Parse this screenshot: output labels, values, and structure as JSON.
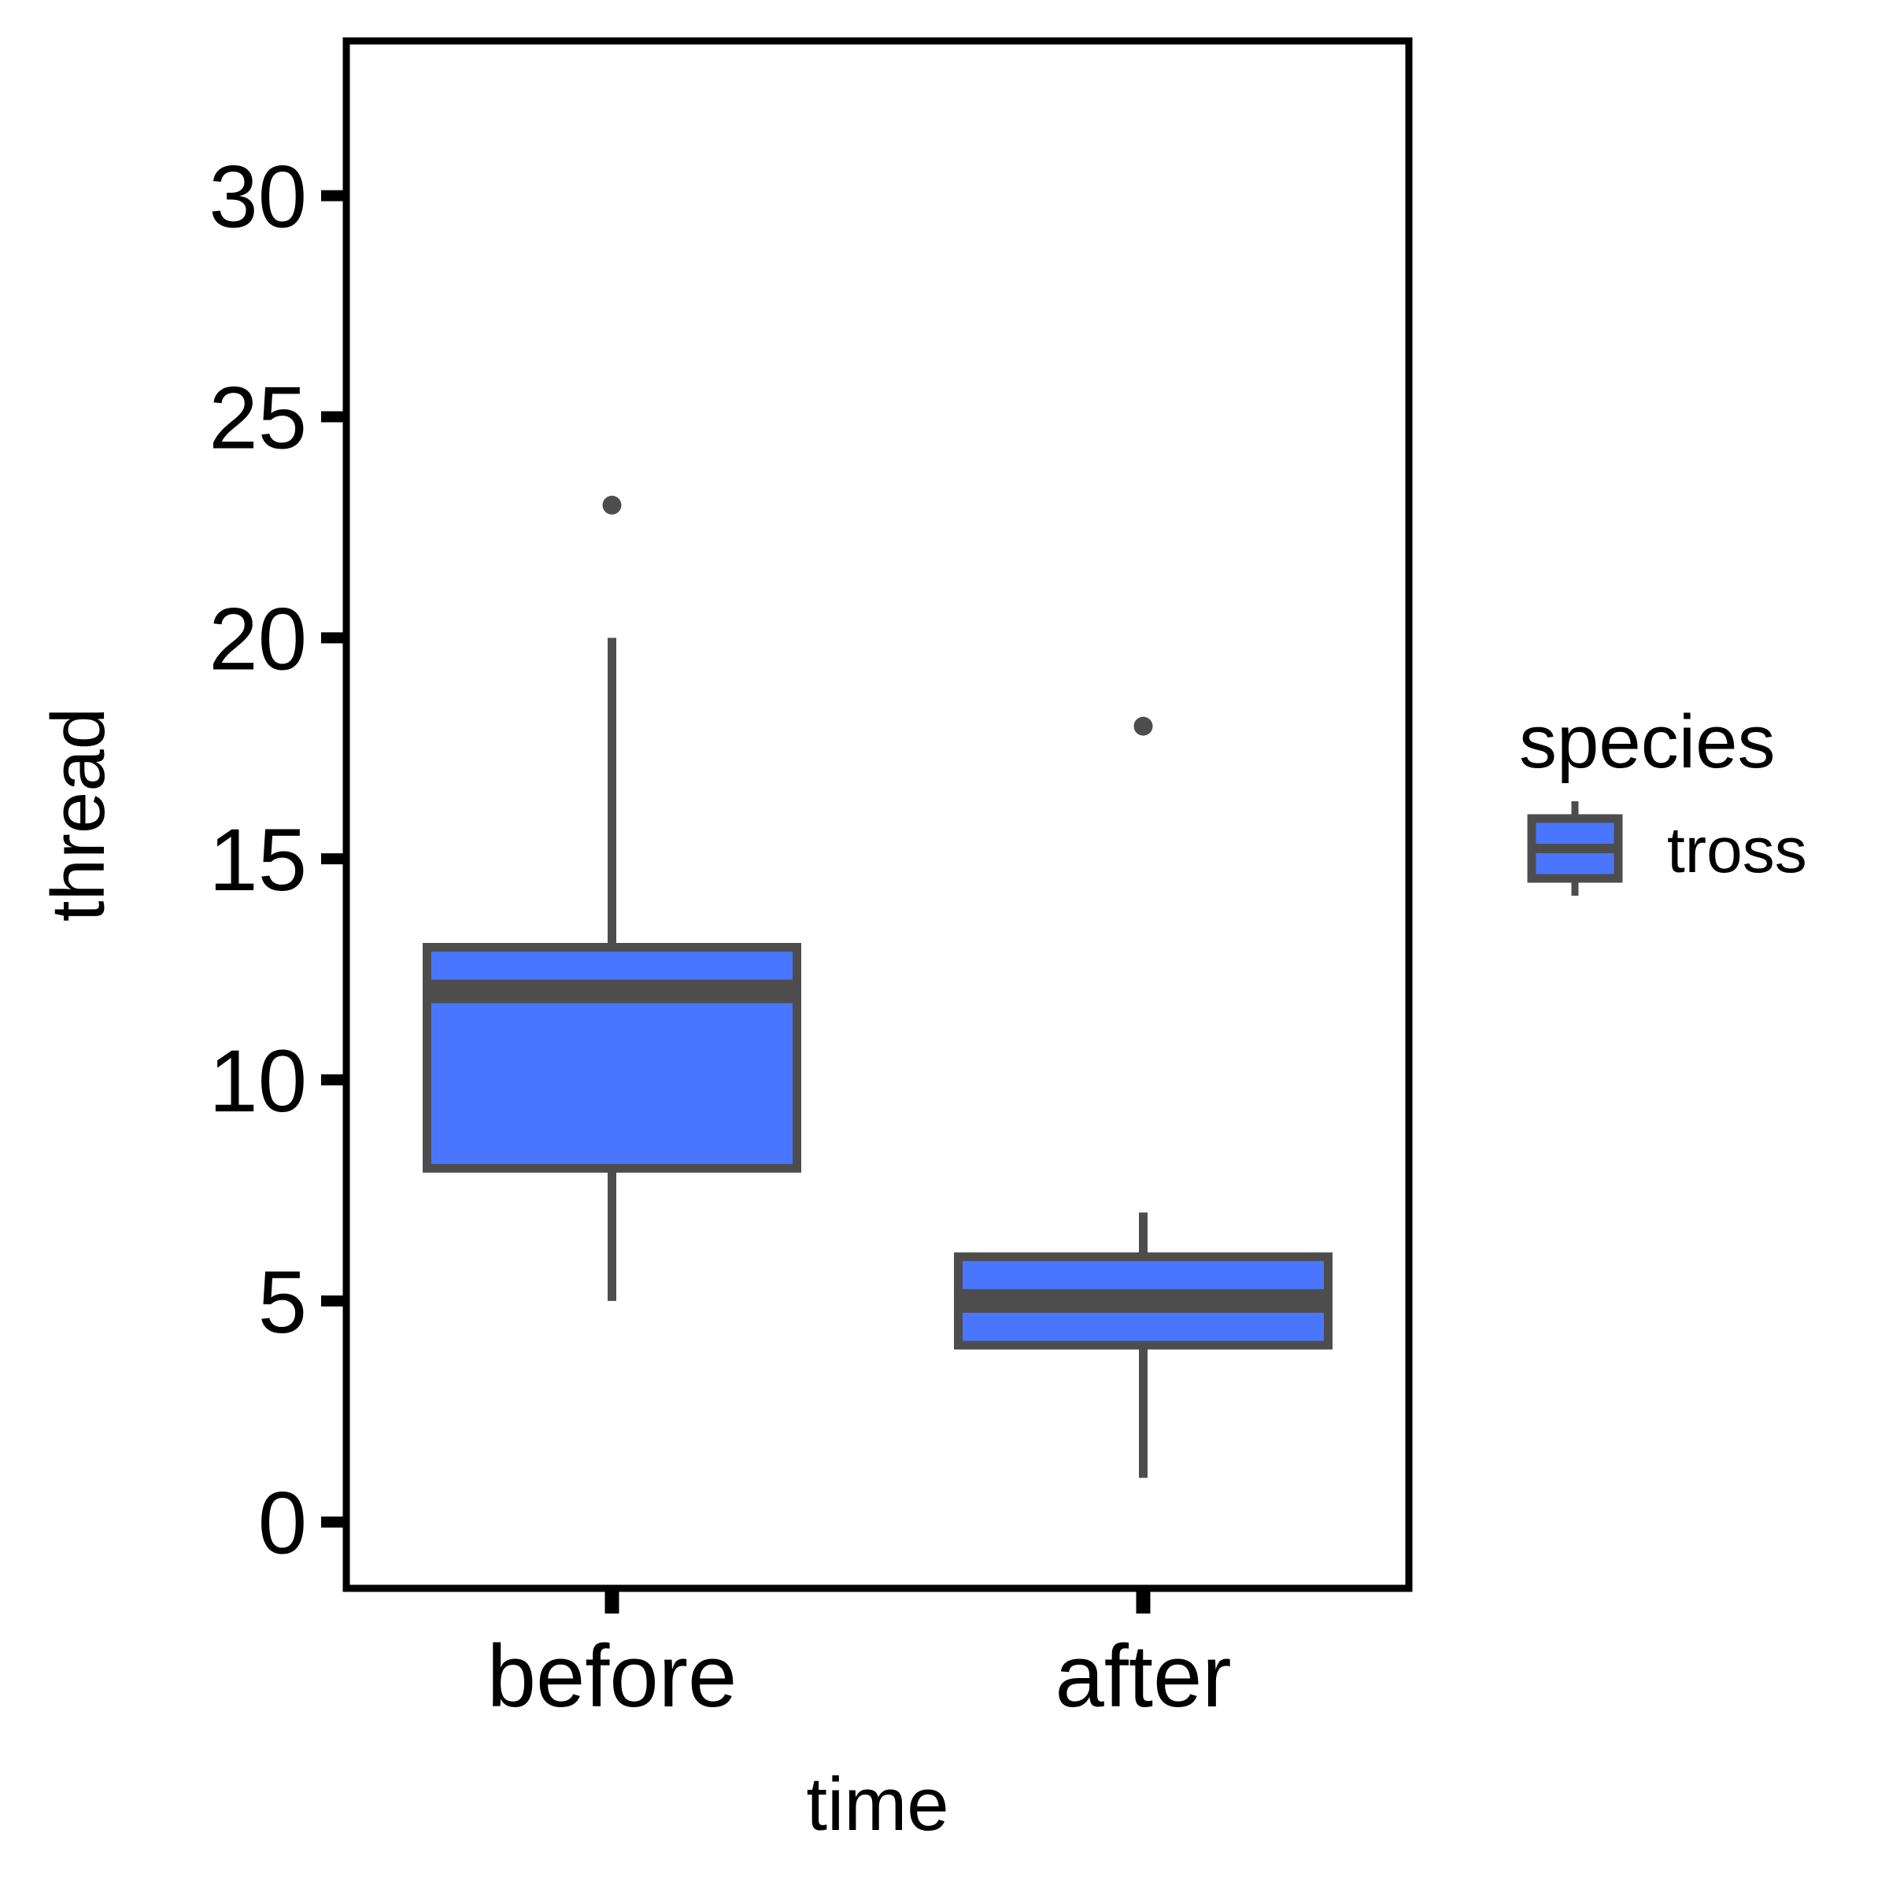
{
  "chart_data": {
    "type": "boxplot",
    "xlabel": "time",
    "ylabel": "thread",
    "categories": [
      "before",
      "after"
    ],
    "ylim": [
      -1.5,
      33.5
    ],
    "yticks": [
      0,
      5,
      10,
      15,
      20,
      25,
      30
    ],
    "grid": false,
    "legend": {
      "title": "species",
      "position": "right",
      "entries": [
        {
          "label": "tross",
          "fill": "#4a76ff"
        }
      ]
    },
    "series": [
      {
        "name": "tross",
        "fill": "#4a76ff",
        "outline": "#4d4d4d",
        "boxes": [
          {
            "category": "before",
            "whisker_low": 5,
            "q1": 8,
            "median": 12,
            "q3": 13,
            "whisker_high": 20,
            "outliers": [
              23
            ]
          },
          {
            "category": "after",
            "whisker_low": 1,
            "q1": 4,
            "median": 5,
            "q3": 6,
            "whisker_high": 7,
            "outliers": [
              18
            ]
          }
        ]
      }
    ]
  }
}
